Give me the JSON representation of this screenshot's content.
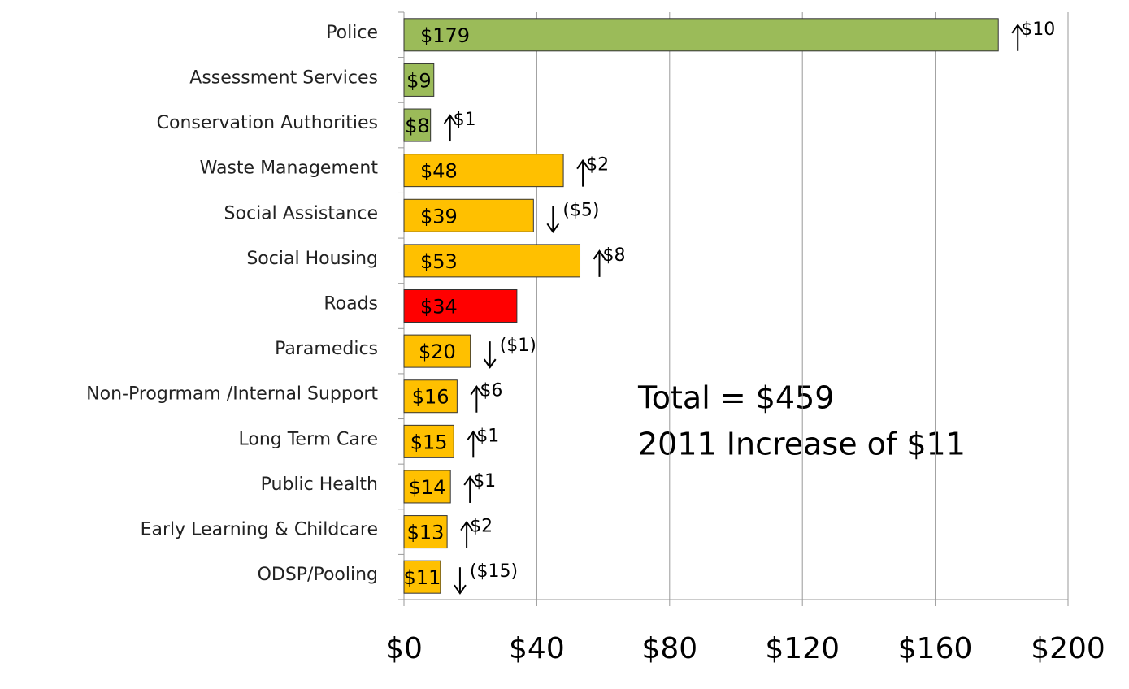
{
  "chart_data": {
    "type": "hbar",
    "categories": [
      "Police",
      "Assessment Services",
      "Conservation Authorities",
      "Waste Management",
      "Social Assistance",
      "Social Housing",
      "Roads",
      "Paramedics",
      "Non-Progrmam /Internal Support",
      "Long Term Care",
      "Public Health",
      "Early Learning & Childcare",
      "ODSP/Pooling"
    ],
    "values": [
      179,
      9,
      8,
      48,
      39,
      53,
      34,
      20,
      16,
      15,
      14,
      13,
      11
    ],
    "value_labels": [
      "$179",
      "$9",
      "$8",
      "$48",
      "$39",
      "$53",
      "$34",
      "$20",
      "$16",
      "$15",
      "$14",
      "$13",
      "$11"
    ],
    "colors": [
      "#9bbb59",
      "#9bbb59",
      "#9bbb59",
      "#ffc000",
      "#ffc000",
      "#ffc000",
      "#ff0000",
      "#ffc000",
      "#ffc000",
      "#ffc000",
      "#ffc000",
      "#ffc000",
      "#ffc000"
    ],
    "changes": [
      10,
      null,
      1,
      2,
      -5,
      8,
      null,
      -1,
      6,
      1,
      1,
      2,
      -15
    ],
    "change_labels": [
      "$10",
      null,
      "$1",
      "$2",
      "($5)",
      "$8",
      null,
      "($1)",
      "$6",
      "$1",
      "$1",
      "$2",
      "($15)"
    ],
    "xlim": [
      0,
      200
    ],
    "xticks": [
      {
        "value": 0,
        "label": "$0"
      },
      {
        "value": 40,
        "label": "$40"
      },
      {
        "value": 80,
        "label": "$80"
      },
      {
        "value": 120,
        "label": "$120"
      },
      {
        "value": 160,
        "label": "$160"
      },
      {
        "value": 200,
        "label": "$200"
      }
    ],
    "grid": true,
    "annotations": [
      "Total = $459",
      "2011 Increase of $11"
    ]
  }
}
